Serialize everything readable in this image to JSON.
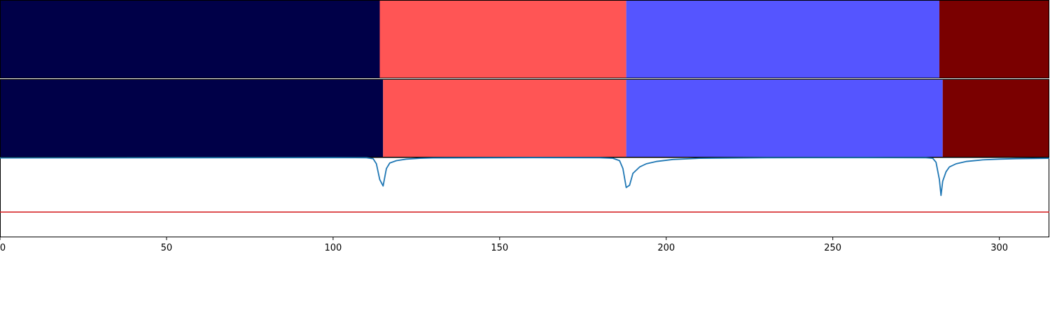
{
  "chart_data": {
    "type": "segmentation-with-line",
    "x_axis": {
      "range": [
        0,
        315
      ],
      "ticks": [
        0,
        50,
        100,
        150,
        200,
        250,
        300
      ],
      "tick_labels": [
        "0",
        "50",
        "100",
        "150",
        "200",
        "250",
        "300"
      ]
    },
    "segment_bars": [
      {
        "segments": [
          {
            "start": 0,
            "end": 114,
            "color": "#000048"
          },
          {
            "start": 114,
            "end": 188,
            "color": "#ff5555"
          },
          {
            "start": 188,
            "end": 282,
            "color": "#5555ff"
          },
          {
            "start": 282,
            "end": 315,
            "color": "#7a0000"
          }
        ]
      },
      {
        "segments": [
          {
            "start": 0,
            "end": 115,
            "color": "#000048"
          },
          {
            "start": 115,
            "end": 188,
            "color": "#ff5555"
          },
          {
            "start": 188,
            "end": 283,
            "color": "#5555ff"
          },
          {
            "start": 283,
            "end": 315,
            "color": "#7a0000"
          }
        ]
      }
    ],
    "line_panel": {
      "ylim": [
        0,
        1
      ],
      "threshold": {
        "value": 0.31,
        "color": "#d62728"
      },
      "series": {
        "color": "#1f77b4",
        "points": [
          [
            0,
            0.995
          ],
          [
            20,
            0.996
          ],
          [
            60,
            0.997
          ],
          [
            100,
            0.998
          ],
          [
            110,
            0.997
          ],
          [
            112,
            0.985
          ],
          [
            113,
            0.92
          ],
          [
            114,
            0.72
          ],
          [
            115,
            0.64
          ],
          [
            116,
            0.86
          ],
          [
            117,
            0.93
          ],
          [
            119,
            0.96
          ],
          [
            122,
            0.98
          ],
          [
            126,
            0.99
          ],
          [
            130,
            0.995
          ],
          [
            160,
            0.998
          ],
          [
            180,
            0.997
          ],
          [
            184,
            0.99
          ],
          [
            186,
            0.96
          ],
          [
            187,
            0.86
          ],
          [
            188,
            0.62
          ],
          [
            189,
            0.65
          ],
          [
            190,
            0.8
          ],
          [
            192,
            0.88
          ],
          [
            194,
            0.92
          ],
          [
            197,
            0.95
          ],
          [
            202,
            0.975
          ],
          [
            210,
            0.99
          ],
          [
            230,
            0.997
          ],
          [
            260,
            0.998
          ],
          [
            278,
            0.997
          ],
          [
            280,
            0.99
          ],
          [
            281,
            0.94
          ],
          [
            282,
            0.72
          ],
          [
            282.5,
            0.52
          ],
          [
            283,
            0.7
          ],
          [
            284,
            0.82
          ],
          [
            285,
            0.88
          ],
          [
            287,
            0.92
          ],
          [
            290,
            0.95
          ],
          [
            295,
            0.97
          ],
          [
            300,
            0.98
          ],
          [
            305,
            0.985
          ],
          [
            315,
            0.99
          ]
        ]
      }
    },
    "colors": {
      "axis": "#000000",
      "separator": "#ffffff",
      "background": "#ffffff"
    }
  }
}
